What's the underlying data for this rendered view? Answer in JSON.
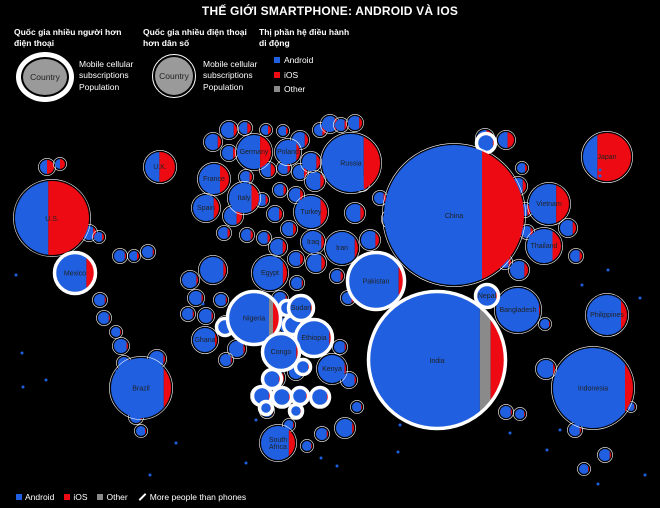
{
  "title": "THẾ GIỚI SMARTPHONE: ANDROID VÀ IOS",
  "legend": {
    "more_phones_heading": "Quốc gia nhiều người hơn điện thoại",
    "more_pop_heading": "Quốc gia nhiều điện thoại hơn dân số",
    "os_heading": "Thị phần hệ điều hành di động",
    "country_label": "Country",
    "mobile_label": "Mobile cellular subscriptions",
    "population_label": "Population",
    "os_items": [
      {
        "label": "Android",
        "color": "#1f5fe0"
      },
      {
        "label": "iOS",
        "color": "#ee0a12"
      },
      {
        "label": "Other",
        "color": "#8a8a8a"
      }
    ]
  },
  "bottom_legend": {
    "android": "Android",
    "ios": "iOS",
    "other": "Other",
    "more_people": "More people than phones"
  },
  "colors": {
    "android": "#1f5fe0",
    "ios": "#ee0a12",
    "other": "#8a8a8a",
    "ring": "#ffffff"
  },
  "chart_data": {
    "type": "bubble-map",
    "title": "THẾ GIỚI SMARTPHONE: ANDROID VÀ IOS",
    "series": [
      {
        "name": "Android"
      },
      {
        "name": "iOS"
      },
      {
        "name": "Other"
      }
    ],
    "labeled_countries": [
      {
        "name": "China",
        "android": 0.7,
        "ios": 0.3,
        "other": 0.0,
        "more_people_than_phones": false
      },
      {
        "name": "India",
        "android": 0.82,
        "ios": 0.1,
        "other": 0.08,
        "more_people_than_phones": true
      },
      {
        "name": "U.S.",
        "android": 0.45,
        "ios": 0.55,
        "other": 0.0,
        "more_people_than_phones": false
      },
      {
        "name": "Indonesia",
        "android": 0.9,
        "ios": 0.1,
        "other": 0.0,
        "more_people_than_phones": false
      },
      {
        "name": "Brazil",
        "android": 0.88,
        "ios": 0.12,
        "other": 0.0,
        "more_people_than_phones": false
      },
      {
        "name": "Pakistan",
        "android": 0.92,
        "ios": 0.08,
        "other": 0.0,
        "more_people_than_phones": true
      },
      {
        "name": "Nigeria",
        "android": 0.8,
        "ios": 0.12,
        "other": 0.08,
        "more_people_than_phones": true
      },
      {
        "name": "Bangladesh",
        "android": 0.98,
        "ios": 0.02,
        "other": 0.0,
        "more_people_than_phones": false
      },
      {
        "name": "Russia",
        "android": 0.72,
        "ios": 0.28,
        "other": 0.0,
        "more_people_than_phones": false
      },
      {
        "name": "Japan",
        "android": 0.3,
        "ios": 0.7,
        "other": 0.0,
        "more_people_than_phones": false
      },
      {
        "name": "Mexico",
        "android": 0.8,
        "ios": 0.2,
        "other": 0.0,
        "more_people_than_phones": true
      },
      {
        "name": "Philippines",
        "android": 0.85,
        "ios": 0.15,
        "other": 0.0,
        "more_people_than_phones": false
      },
      {
        "name": "Ethiopia",
        "android": 0.95,
        "ios": 0.05,
        "other": 0.0,
        "more_people_than_phones": true
      },
      {
        "name": "Vietnam",
        "android": 0.68,
        "ios": 0.32,
        "other": 0.0,
        "more_people_than_phones": false
      },
      {
        "name": "Egypt",
        "android": 0.88,
        "ios": 0.12,
        "other": 0.0,
        "more_people_than_phones": false
      },
      {
        "name": "Germany",
        "android": 0.68,
        "ios": 0.32,
        "other": 0.0,
        "more_people_than_phones": false
      },
      {
        "name": "Iran",
        "android": 0.9,
        "ios": 0.1,
        "other": 0.0,
        "more_people_than_phones": false
      },
      {
        "name": "Turkey",
        "android": 0.8,
        "ios": 0.2,
        "other": 0.0,
        "more_people_than_phones": false
      },
      {
        "name": "Congo",
        "android": 0.95,
        "ios": 0.05,
        "other": 0.0,
        "more_people_than_phones": true
      },
      {
        "name": "Thailand",
        "android": 0.75,
        "ios": 0.25,
        "other": 0.0,
        "more_people_than_phones": false
      },
      {
        "name": "U.K.",
        "android": 0.48,
        "ios": 0.52,
        "other": 0.0,
        "more_people_than_phones": false
      },
      {
        "name": "France",
        "android": 0.7,
        "ios": 0.3,
        "other": 0.0,
        "more_people_than_phones": false
      },
      {
        "name": "Italy",
        "android": 0.75,
        "ios": 0.25,
        "other": 0.0,
        "more_people_than_phones": false
      },
      {
        "name": "South Africa",
        "android": 0.82,
        "ios": 0.18,
        "other": 0.0,
        "more_people_than_phones": false
      },
      {
        "name": "Kenya",
        "android": 0.95,
        "ios": 0.05,
        "other": 0.0,
        "more_people_than_phones": false
      },
      {
        "name": "Spain",
        "android": 0.8,
        "ios": 0.2,
        "other": 0.0,
        "more_people_than_phones": false
      },
      {
        "name": "Iraq",
        "android": 0.88,
        "ios": 0.12,
        "other": 0.0,
        "more_people_than_phones": false
      },
      {
        "name": "Sudan",
        "android": 0.95,
        "ios": 0.05,
        "other": 0.0,
        "more_people_than_phones": true
      },
      {
        "name": "Ghana",
        "android": 0.92,
        "ios": 0.08,
        "other": 0.0,
        "more_people_than_phones": false
      },
      {
        "name": "Poland",
        "android": 0.85,
        "ios": 0.15,
        "other": 0.0,
        "more_people_than_phones": false
      },
      {
        "name": "Nepal",
        "android": 0.95,
        "ios": 0.05,
        "other": 0.0,
        "more_people_than_phones": true
      }
    ]
  }
}
